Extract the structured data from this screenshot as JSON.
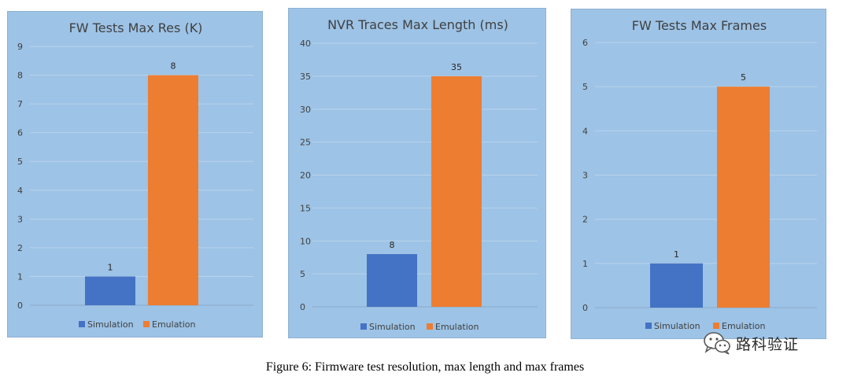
{
  "colors": {
    "simulation": "#4472c4",
    "emulation": "#ed7d31",
    "panel_bg": "#9dc3e6"
  },
  "chart_data": [
    {
      "type": "bar",
      "title": "FW Tests Max Res (K)",
      "categories": [
        ""
      ],
      "series": [
        {
          "name": "Simulation",
          "values": [
            1
          ]
        },
        {
          "name": "Emulation",
          "values": [
            8
          ]
        }
      ],
      "xlabel": "",
      "ylabel": "",
      "ylim": [
        0,
        9
      ],
      "yticks": [
        0,
        1,
        2,
        3,
        4,
        5,
        6,
        7,
        8,
        9
      ],
      "grid": true,
      "legend": "bottom"
    },
    {
      "type": "bar",
      "title": "NVR Traces Max Length (ms)",
      "categories": [
        ""
      ],
      "series": [
        {
          "name": "Simulation",
          "values": [
            8
          ]
        },
        {
          "name": "Emulation",
          "values": [
            35
          ]
        }
      ],
      "xlabel": "",
      "ylabel": "",
      "ylim": [
        0,
        40
      ],
      "yticks": [
        0,
        5,
        10,
        15,
        20,
        25,
        30,
        35,
        40
      ],
      "grid": true,
      "legend": "bottom"
    },
    {
      "type": "bar",
      "title": "FW Tests Max Frames",
      "categories": [
        ""
      ],
      "series": [
        {
          "name": "Simulation",
          "values": [
            1
          ]
        },
        {
          "name": "Emulation",
          "values": [
            5
          ]
        }
      ],
      "xlabel": "",
      "ylabel": "",
      "ylim": [
        0,
        6
      ],
      "yticks": [
        0,
        1,
        2,
        3,
        4,
        5,
        6
      ],
      "grid": true,
      "legend": "bottom"
    }
  ],
  "caption": "Figure 6:  Firmware test resolution, max length and max frames",
  "watermark": {
    "text": "路科验证",
    "icon": "wechat-icon"
  }
}
